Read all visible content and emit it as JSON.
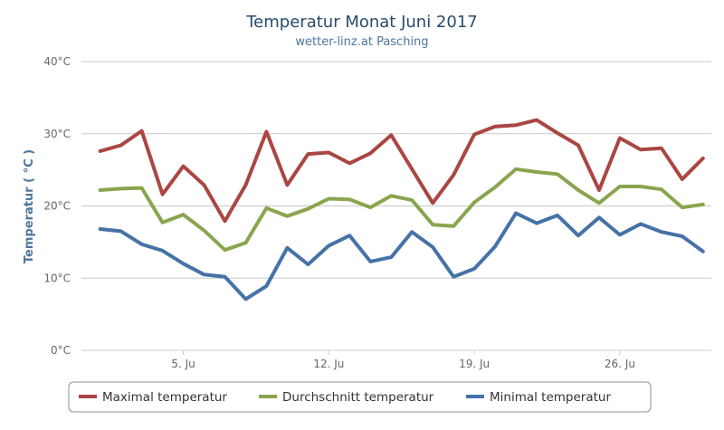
{
  "chart_data": {
    "type": "line",
    "title": "Temperatur Monat Juni 2017",
    "subtitle": "wetter-linz.at Pasching",
    "ylabel": "Temperatur ( °C )",
    "xlabel": "",
    "x": [
      1,
      2,
      3,
      4,
      5,
      6,
      7,
      8,
      9,
      10,
      11,
      12,
      13,
      14,
      15,
      16,
      17,
      18,
      19,
      20,
      21,
      22,
      23,
      24,
      25,
      26,
      27,
      28,
      29,
      30
    ],
    "xlim": [
      0.1,
      30.4
    ],
    "xticks": [
      {
        "value": 5,
        "label": "5. Ju"
      },
      {
        "value": 12,
        "label": "12. Ju"
      },
      {
        "value": 19,
        "label": "19. Ju"
      },
      {
        "value": 26,
        "label": "26. Ju"
      }
    ],
    "ylim": [
      0,
      40
    ],
    "yticks": [
      {
        "value": 0,
        "label": "0°C"
      },
      {
        "value": 10,
        "label": "10°C"
      },
      {
        "value": 20,
        "label": "20°C"
      },
      {
        "value": 30,
        "label": "30°C"
      },
      {
        "value": 40,
        "label": "40°C"
      }
    ],
    "grid": true,
    "legend_position": "bottom",
    "series": [
      {
        "name": "Maximal temperatur",
        "color": "#aa4643",
        "values": [
          27.6,
          28.4,
          30.4,
          21.6,
          25.5,
          22.9,
          17.9,
          22.9,
          30.3,
          22.9,
          27.2,
          27.4,
          25.9,
          27.3,
          29.8,
          25.1,
          20.4,
          24.3,
          29.9,
          31.0,
          31.2,
          31.9,
          30.1,
          28.4,
          22.2,
          29.4,
          27.8,
          28.0,
          23.7,
          26.6
        ]
      },
      {
        "name": "Durchschnitt temperatur",
        "color": "#89a54e",
        "values": [
          22.2,
          22.4,
          22.5,
          17.7,
          18.8,
          16.6,
          13.9,
          14.9,
          19.7,
          18.6,
          19.6,
          21.0,
          20.9,
          19.8,
          21.4,
          20.8,
          17.4,
          17.2,
          20.5,
          22.6,
          25.1,
          24.7,
          24.4,
          22.2,
          20.4,
          22.7,
          22.7,
          22.3,
          19.8,
          20.2
        ]
      },
      {
        "name": "Minimal temperatur",
        "color": "#4572a7",
        "values": [
          16.8,
          16.5,
          14.7,
          13.8,
          12.0,
          10.5,
          10.2,
          7.1,
          8.9,
          14.2,
          11.9,
          14.5,
          15.9,
          12.3,
          12.9,
          16.4,
          14.3,
          10.2,
          11.3,
          14.4,
          19.0,
          17.6,
          18.7,
          15.9,
          18.4,
          16.0,
          17.5,
          16.4,
          15.8,
          13.7
        ]
      }
    ]
  }
}
